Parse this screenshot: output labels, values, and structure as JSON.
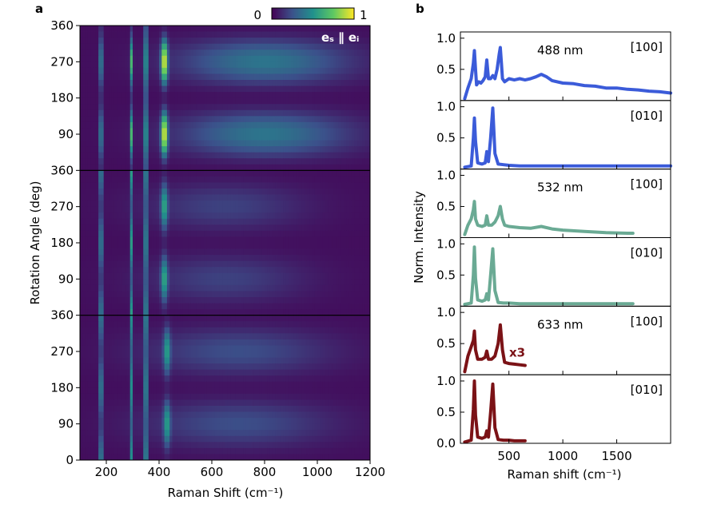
{
  "chart_data": [
    {
      "type": "heatmap",
      "panel_label": "a",
      "xlabel": "Raman Shift (cm⁻¹)",
      "ylabel": "Rotation Angle (deg)",
      "xlim": [
        100,
        1200
      ],
      "x_ticks": [
        200,
        400,
        600,
        800,
        1000,
        1200
      ],
      "y_ticks": [
        0,
        90,
        180,
        270,
        360
      ],
      "colorbar": {
        "min_label": "0",
        "max_label": "1",
        "colormap": "viridis"
      },
      "annotation": "eₛ ∥ eᵢ",
      "subpanels": [
        {
          "laser": "488 nm",
          "peaks": [
            {
              "x": 180,
              "amp": 0.82,
              "phase": 90,
              "mod": 0.7,
              "width": 5
            },
            {
              "x": 295,
              "amp": 0.6,
              "phase": 90,
              "mod": 0.8,
              "width": 5
            },
            {
              "x": 350,
              "amp": 0.95,
              "phase": 90,
              "mod": 0.4,
              "width": 5
            },
            {
              "x": 420,
              "amp": 0.9,
              "phase": 90,
              "mod": 0.95,
              "width": 12
            },
            {
              "x": 800,
              "amp": 0.35,
              "phase": 90,
              "mod": 0.95,
              "width": 320
            }
          ]
        },
        {
          "laser": "532 nm",
          "peaks": [
            {
              "x": 180,
              "amp": 0.85,
              "phase": 0,
              "mod": 0.6,
              "width": 5
            },
            {
              "x": 295,
              "amp": 0.5,
              "phase": 0,
              "mod": 0.6,
              "width": 5
            },
            {
              "x": 350,
              "amp": 0.92,
              "phase": 0,
              "mod": 0.5,
              "width": 5
            },
            {
              "x": 420,
              "amp": 0.5,
              "phase": 90,
              "mod": 0.9,
              "width": 12
            },
            {
              "x": 650,
              "amp": 0.16,
              "phase": 90,
              "mod": 0.9,
              "width": 300
            }
          ]
        },
        {
          "laser": "633 nm",
          "peaks": [
            {
              "x": 180,
              "amp": 0.85,
              "phase": 0,
              "mod": 0.6,
              "width": 5
            },
            {
              "x": 295,
              "amp": 0.45,
              "phase": 0,
              "mod": 0.5,
              "width": 5
            },
            {
              "x": 350,
              "amp": 0.92,
              "phase": 0,
              "mod": 0.5,
              "width": 5
            },
            {
              "x": 430,
              "amp": 0.45,
              "phase": 90,
              "mod": 0.9,
              "width": 12
            },
            {
              "x": 700,
              "amp": 0.2,
              "phase": 90,
              "mod": 0.9,
              "width": 350
            }
          ]
        }
      ]
    },
    {
      "type": "line",
      "panel_label": "b",
      "xlabel": "Raman shift (cm⁻¹)",
      "ylabel": "Norm. Intensity",
      "xlim": [
        50,
        2000
      ],
      "x_ticks": [
        500,
        1000,
        1500
      ],
      "ylim": [
        0,
        1.1
      ],
      "y_ticks": [
        0.5,
        1.0
      ],
      "bottom_y_ticks": [
        0.0,
        0.5,
        1.0
      ],
      "panels": [
        {
          "orientation": "[100]",
          "laser": "488 nm",
          "color": "#3b5bd9",
          "x": [
            90,
            120,
            150,
            170,
            180,
            190,
            200,
            220,
            240,
            260,
            280,
            295,
            310,
            330,
            350,
            370,
            390,
            410,
            420,
            430,
            440,
            460,
            500,
            550,
            600,
            650,
            700,
            750,
            800,
            850,
            900,
            1000,
            1100,
            1200,
            1300,
            1400,
            1500,
            1600,
            1700,
            1800,
            1900,
            2000
          ],
          "y": [
            0.03,
            0.2,
            0.35,
            0.6,
            0.8,
            0.5,
            0.25,
            0.3,
            0.28,
            0.32,
            0.38,
            0.65,
            0.35,
            0.35,
            0.4,
            0.35,
            0.5,
            0.75,
            0.85,
            0.6,
            0.35,
            0.3,
            0.35,
            0.33,
            0.35,
            0.33,
            0.35,
            0.38,
            0.42,
            0.38,
            0.32,
            0.28,
            0.27,
            0.24,
            0.23,
            0.2,
            0.2,
            0.18,
            0.17,
            0.15,
            0.14,
            0.12
          ]
        },
        {
          "orientation": "[010]",
          "laser": "",
          "color": "#3b5bd9",
          "x": [
            90,
            150,
            170,
            180,
            190,
            210,
            250,
            280,
            295,
            310,
            330,
            350,
            370,
            400,
            450,
            500,
            600,
            800,
            1000,
            1200,
            1500,
            2000
          ],
          "y": [
            0.03,
            0.05,
            0.5,
            0.82,
            0.45,
            0.1,
            0.08,
            0.1,
            0.28,
            0.12,
            0.5,
            0.98,
            0.25,
            0.08,
            0.07,
            0.06,
            0.05,
            0.05,
            0.05,
            0.05,
            0.05,
            0.05
          ]
        },
        {
          "orientation": "[100]",
          "laser": "532 nm",
          "color": "#6aaa94",
          "x": [
            90,
            120,
            150,
            170,
            180,
            190,
            210,
            250,
            280,
            295,
            310,
            340,
            370,
            400,
            420,
            440,
            460,
            500,
            600,
            700,
            800,
            900,
            1000,
            1200,
            1400,
            1600,
            1650
          ],
          "y": [
            0.05,
            0.2,
            0.3,
            0.45,
            0.58,
            0.3,
            0.2,
            0.18,
            0.2,
            0.35,
            0.2,
            0.2,
            0.25,
            0.35,
            0.5,
            0.3,
            0.2,
            0.18,
            0.16,
            0.15,
            0.18,
            0.14,
            0.12,
            0.1,
            0.08,
            0.07,
            0.07
          ]
        },
        {
          "orientation": "[010]",
          "laser": "",
          "color": "#6aaa94",
          "x": [
            90,
            150,
            170,
            180,
            190,
            210,
            250,
            280,
            295,
            310,
            330,
            350,
            370,
            400,
            450,
            500,
            600,
            800,
            1000,
            1200,
            1500,
            1650
          ],
          "y": [
            0.03,
            0.05,
            0.5,
            0.95,
            0.45,
            0.1,
            0.08,
            0.1,
            0.2,
            0.1,
            0.5,
            0.92,
            0.25,
            0.06,
            0.05,
            0.05,
            0.04,
            0.04,
            0.04,
            0.04,
            0.04,
            0.04
          ]
        },
        {
          "orientation": "[100]",
          "laser": "633 nm",
          "color": "#7b1216",
          "x": [
            90,
            120,
            150,
            170,
            180,
            190,
            210,
            250,
            280,
            295,
            310,
            340,
            370,
            400,
            420,
            440,
            460,
            500,
            550,
            600,
            650
          ],
          "y": [
            0.05,
            0.3,
            0.45,
            0.55,
            0.7,
            0.4,
            0.25,
            0.25,
            0.28,
            0.38,
            0.25,
            0.25,
            0.3,
            0.5,
            0.8,
            0.4,
            0.2,
            0.18,
            0.17,
            0.16,
            0.15
          ],
          "annotation": "x3"
        },
        {
          "orientation": "[010]",
          "laser": "",
          "color": "#7b1216",
          "x": [
            90,
            150,
            170,
            180,
            190,
            210,
            250,
            280,
            295,
            310,
            330,
            350,
            370,
            400,
            450,
            500,
            550,
            600,
            650
          ],
          "y": [
            0.02,
            0.05,
            0.55,
            1.0,
            0.45,
            0.1,
            0.08,
            0.1,
            0.2,
            0.1,
            0.5,
            0.95,
            0.25,
            0.06,
            0.05,
            0.05,
            0.04,
            0.04,
            0.04
          ]
        }
      ]
    }
  ]
}
